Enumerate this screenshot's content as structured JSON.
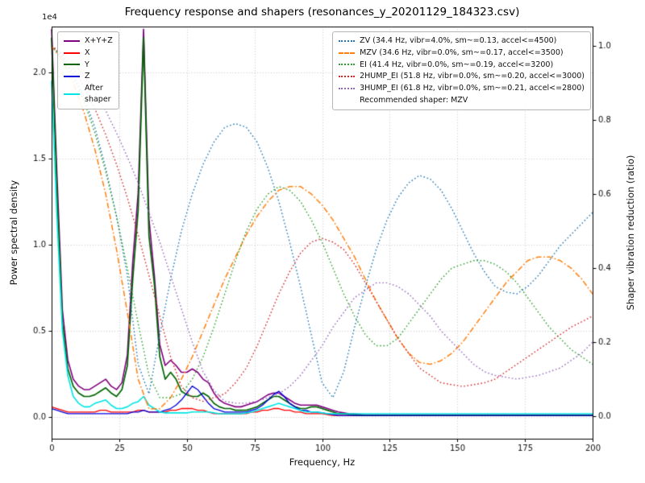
{
  "chart_data": {
    "type": "line",
    "title": "Frequency response and shapers (resonances_y_20201129_184323.csv)",
    "xlabel": "Frequency, Hz",
    "ylabel_left": "Power spectral density",
    "ylabel_right": "Shaper vibration reduction (ratio)",
    "offset_text": "1e4",
    "psd_units_scale": "1e4",
    "grid": true,
    "legend_left_position": "upper left",
    "legend_right_position": "upper right",
    "recommended": "Recommended shaper: MZV",
    "xlim": [
      0,
      200
    ],
    "ylim_left": [
      -0.125,
      2.265
    ],
    "ylim_right": [
      -0.061,
      1.052
    ],
    "x_ticks": [
      0,
      25,
      50,
      75,
      100,
      125,
      150,
      175,
      200
    ],
    "y_left_ticks": [
      "0.0",
      "0.5",
      "1.0",
      "1.5",
      "2.0"
    ],
    "y_right_ticks": [
      "0.0",
      "0.2",
      "0.4",
      "0.6",
      "0.8",
      "1.0"
    ],
    "x_psd": [
      0,
      2,
      4,
      6,
      8,
      10,
      12,
      14,
      16,
      18,
      20,
      22,
      24,
      26,
      28,
      30,
      32,
      34,
      36,
      38,
      40,
      42,
      44,
      46,
      48,
      50,
      52,
      54,
      56,
      58,
      60,
      62,
      64,
      66,
      68,
      70,
      72,
      74,
      76,
      78,
      80,
      82,
      84,
      86,
      88,
      90,
      92,
      94,
      96,
      98,
      100,
      102,
      104,
      106,
      108,
      110,
      112,
      114,
      116,
      118,
      120,
      122,
      124,
      126,
      128,
      130,
      132,
      134,
      136,
      138,
      140,
      142,
      144,
      146,
      148,
      150,
      152,
      154,
      156,
      158,
      160,
      162,
      164,
      166,
      168,
      170,
      172,
      174,
      176,
      178,
      180,
      182,
      184,
      186,
      188,
      190,
      192,
      194,
      196,
      198,
      200
    ],
    "psd_series": [
      {
        "name": "X+Y+Z",
        "color": "#800080",
        "style": "solid",
        "axis": "left",
        "width": 1.6,
        "values": [
          2.25,
          1.4,
          0.62,
          0.33,
          0.22,
          0.18,
          0.16,
          0.16,
          0.18,
          0.2,
          0.22,
          0.18,
          0.16,
          0.2,
          0.36,
          0.9,
          1.3,
          2.25,
          1.15,
          0.82,
          0.42,
          0.3,
          0.33,
          0.3,
          0.26,
          0.26,
          0.28,
          0.26,
          0.22,
          0.2,
          0.14,
          0.1,
          0.08,
          0.07,
          0.06,
          0.06,
          0.07,
          0.08,
          0.09,
          0.11,
          0.13,
          0.14,
          0.14,
          0.12,
          0.1,
          0.08,
          0.07,
          0.07,
          0.07,
          0.07,
          0.06,
          0.05,
          0.04,
          0.03,
          0.025,
          0.02,
          0.02,
          0.015,
          0.01,
          0.01,
          0.01,
          0.01,
          0.01,
          0.01,
          0.01,
          0.01,
          0.01,
          0.01,
          0.01,
          0.01,
          0.01,
          0.01,
          0.01,
          0.01,
          0.01,
          0.01,
          0.01,
          0.01,
          0.01,
          0.01,
          0.01,
          0.01,
          0.01,
          0.01,
          0.01,
          0.01,
          0.01,
          0.01,
          0.01,
          0.01,
          0.01,
          0.01,
          0.01,
          0.01,
          0.01,
          0.01,
          0.01,
          0.01,
          0.01,
          0.01,
          0.01
        ]
      },
      {
        "name": "X",
        "color": "#ff0000",
        "style": "solid",
        "axis": "left",
        "width": 1.3,
        "values": [
          0.06,
          0.05,
          0.04,
          0.03,
          0.03,
          0.03,
          0.03,
          0.03,
          0.03,
          0.04,
          0.04,
          0.03,
          0.03,
          0.03,
          0.03,
          0.03,
          0.04,
          0.04,
          0.03,
          0.03,
          0.03,
          0.03,
          0.04,
          0.04,
          0.05,
          0.05,
          0.05,
          0.04,
          0.04,
          0.03,
          0.02,
          0.02,
          0.02,
          0.02,
          0.02,
          0.02,
          0.02,
          0.03,
          0.03,
          0.04,
          0.04,
          0.05,
          0.05,
          0.04,
          0.04,
          0.03,
          0.03,
          0.02,
          0.02,
          0.02,
          0.02,
          0.015,
          0.01,
          0.01,
          0.01,
          0.01,
          0.01,
          0.01,
          0.01,
          0.01,
          0.01,
          0.01,
          0.01,
          0.01,
          0.01,
          0.01,
          0.01,
          0.01,
          0.01,
          0.01,
          0.01,
          0.01,
          0.01,
          0.01,
          0.01,
          0.01,
          0.01,
          0.01,
          0.01,
          0.01,
          0.01,
          0.01,
          0.01,
          0.01,
          0.01,
          0.01,
          0.01,
          0.01,
          0.01,
          0.01,
          0.01,
          0.01,
          0.01,
          0.01,
          0.01,
          0.01,
          0.01,
          0.01,
          0.01,
          0.01,
          0.01
        ]
      },
      {
        "name": "Y",
        "color": "#006400",
        "style": "solid",
        "axis": "left",
        "width": 1.7,
        "values": [
          2.2,
          1.3,
          0.55,
          0.28,
          0.18,
          0.14,
          0.12,
          0.12,
          0.13,
          0.15,
          0.17,
          0.14,
          0.12,
          0.16,
          0.3,
          0.8,
          1.2,
          2.2,
          1.05,
          0.77,
          0.35,
          0.22,
          0.26,
          0.22,
          0.15,
          0.13,
          0.12,
          0.12,
          0.14,
          0.12,
          0.08,
          0.06,
          0.05,
          0.05,
          0.04,
          0.04,
          0.04,
          0.05,
          0.06,
          0.08,
          0.1,
          0.12,
          0.12,
          0.1,
          0.08,
          0.06,
          0.05,
          0.05,
          0.06,
          0.06,
          0.05,
          0.04,
          0.03,
          0.02,
          0.02,
          0.015,
          0.012,
          0.01,
          0.01,
          0.01,
          0.01,
          0.01,
          0.01,
          0.01,
          0.01,
          0.01,
          0.01,
          0.01,
          0.01,
          0.01,
          0.01,
          0.01,
          0.01,
          0.01,
          0.01,
          0.01,
          0.01,
          0.01,
          0.01,
          0.01,
          0.01,
          0.01,
          0.01,
          0.01,
          0.01,
          0.01,
          0.01,
          0.01,
          0.01,
          0.01,
          0.01,
          0.01,
          0.01,
          0.01,
          0.01,
          0.01,
          0.01,
          0.01,
          0.01,
          0.01,
          0.01
        ]
      },
      {
        "name": "Z",
        "color": "#0000dd",
        "style": "solid",
        "axis": "left",
        "width": 1.3,
        "values": [
          0.05,
          0.04,
          0.03,
          0.02,
          0.02,
          0.02,
          0.02,
          0.02,
          0.02,
          0.02,
          0.02,
          0.02,
          0.02,
          0.02,
          0.02,
          0.03,
          0.03,
          0.04,
          0.03,
          0.03,
          0.03,
          0.04,
          0.05,
          0.07,
          0.1,
          0.14,
          0.18,
          0.16,
          0.12,
          0.08,
          0.05,
          0.04,
          0.03,
          0.03,
          0.03,
          0.03,
          0.03,
          0.04,
          0.05,
          0.07,
          0.1,
          0.13,
          0.15,
          0.12,
          0.08,
          0.06,
          0.04,
          0.04,
          0.03,
          0.03,
          0.025,
          0.02,
          0.015,
          0.01,
          0.01,
          0.01,
          0.01,
          0.01,
          0.01,
          0.01,
          0.01,
          0.01,
          0.01,
          0.01,
          0.01,
          0.01,
          0.01,
          0.01,
          0.01,
          0.01,
          0.01,
          0.01,
          0.01,
          0.01,
          0.01,
          0.01,
          0.01,
          0.01,
          0.01,
          0.01,
          0.01,
          0.01,
          0.01,
          0.01,
          0.01,
          0.01,
          0.01,
          0.01,
          0.01,
          0.01,
          0.01,
          0.01,
          0.01,
          0.01,
          0.01,
          0.01,
          0.01,
          0.01,
          0.01,
          0.01,
          0.01
        ]
      },
      {
        "name": "After\nshaper",
        "color": "#00e5e5",
        "style": "solid",
        "axis": "left",
        "width": 1.6,
        "values": [
          1.95,
          1.15,
          0.5,
          0.24,
          0.12,
          0.08,
          0.06,
          0.06,
          0.08,
          0.09,
          0.1,
          0.07,
          0.05,
          0.05,
          0.06,
          0.08,
          0.09,
          0.12,
          0.07,
          0.05,
          0.03,
          0.025,
          0.025,
          0.025,
          0.025,
          0.025,
          0.03,
          0.03,
          0.03,
          0.03,
          0.025,
          0.02,
          0.02,
          0.02,
          0.02,
          0.02,
          0.025,
          0.03,
          0.04,
          0.05,
          0.06,
          0.07,
          0.08,
          0.07,
          0.06,
          0.05,
          0.04,
          0.03,
          0.03,
          0.03,
          0.025,
          0.02,
          0.02,
          0.02,
          0.02,
          0.02,
          0.02,
          0.02,
          0.02,
          0.02,
          0.02,
          0.02,
          0.02,
          0.02,
          0.02,
          0.02,
          0.02,
          0.02,
          0.02,
          0.02,
          0.02,
          0.02,
          0.02,
          0.02,
          0.02,
          0.02,
          0.02,
          0.02,
          0.02,
          0.02,
          0.02,
          0.02,
          0.02,
          0.02,
          0.02,
          0.02,
          0.02,
          0.02,
          0.02,
          0.02,
          0.02,
          0.02,
          0.02,
          0.02,
          0.02,
          0.02,
          0.02,
          0.02,
          0.02,
          0.02,
          0.02
        ]
      }
    ],
    "x_shapers": [
      0,
      4,
      8,
      12,
      16,
      20,
      24,
      28,
      32,
      36,
      40,
      44,
      48,
      52,
      56,
      60,
      64,
      68,
      72,
      76,
      80,
      84,
      88,
      92,
      96,
      100,
      104,
      108,
      112,
      116,
      120,
      124,
      128,
      132,
      136,
      140,
      144,
      148,
      152,
      156,
      160,
      164,
      168,
      172,
      176,
      180,
      184,
      188,
      192,
      196,
      200
    ],
    "shaper_series": [
      {
        "name": "ZV",
        "label": "ZV (34.4 Hz, vibr=4.0%, sm~=0.13, accel<=4500)",
        "color": "#1f77b4",
        "style": "dotted",
        "axis": "right",
        "width": 1.4,
        "values": [
          1.0,
          0.97,
          0.925,
          0.86,
          0.78,
          0.67,
          0.54,
          0.38,
          0.14,
          0.06,
          0.22,
          0.37,
          0.5,
          0.6,
          0.68,
          0.74,
          0.78,
          0.79,
          0.78,
          0.74,
          0.67,
          0.58,
          0.47,
          0.35,
          0.22,
          0.09,
          0.05,
          0.12,
          0.24,
          0.35,
          0.45,
          0.53,
          0.59,
          0.63,
          0.65,
          0.64,
          0.61,
          0.56,
          0.5,
          0.44,
          0.39,
          0.35,
          0.335,
          0.33,
          0.35,
          0.38,
          0.42,
          0.46,
          0.49,
          0.52,
          0.55
        ]
      },
      {
        "name": "MZV",
        "label": "MZV (34.6 Hz, vibr=0.0%, sm~=0.17, accel<=3500)",
        "color": "#ff7f0e",
        "style": "dashdot",
        "axis": "right",
        "width": 1.5,
        "values": [
          1.0,
          0.96,
          0.9,
          0.82,
          0.72,
          0.6,
          0.45,
          0.28,
          0.1,
          0.02,
          0.02,
          0.05,
          0.1,
          0.16,
          0.23,
          0.3,
          0.37,
          0.43,
          0.49,
          0.54,
          0.58,
          0.61,
          0.62,
          0.62,
          0.6,
          0.57,
          0.53,
          0.48,
          0.43,
          0.37,
          0.31,
          0.26,
          0.21,
          0.17,
          0.145,
          0.14,
          0.15,
          0.17,
          0.2,
          0.24,
          0.28,
          0.32,
          0.36,
          0.39,
          0.42,
          0.43,
          0.43,
          0.42,
          0.4,
          0.37,
          0.33
        ]
      },
      {
        "name": "EI",
        "label": "EI (41.4 Hz, vibr=0.0%, sm~=0.19, accel<=3200)",
        "color": "#2ca02c",
        "style": "dotted",
        "axis": "right",
        "width": 1.4,
        "values": [
          1.0,
          0.965,
          0.915,
          0.85,
          0.765,
          0.66,
          0.54,
          0.4,
          0.25,
          0.11,
          0.05,
          0.05,
          0.06,
          0.1,
          0.16,
          0.24,
          0.33,
          0.42,
          0.5,
          0.56,
          0.6,
          0.62,
          0.61,
          0.58,
          0.53,
          0.47,
          0.4,
          0.33,
          0.27,
          0.22,
          0.19,
          0.19,
          0.21,
          0.25,
          0.29,
          0.33,
          0.37,
          0.4,
          0.41,
          0.42,
          0.42,
          0.41,
          0.39,
          0.36,
          0.32,
          0.28,
          0.24,
          0.21,
          0.18,
          0.16,
          0.14
        ]
      },
      {
        "name": "2HUMP_EI",
        "label": "2HUMP_EI (51.8 Hz, vibr=0.0%, sm~=0.20, accel<=3000)",
        "color": "#d62728",
        "style": "dotted",
        "axis": "right",
        "width": 1.4,
        "values": [
          1.0,
          0.975,
          0.94,
          0.89,
          0.83,
          0.76,
          0.68,
          0.59,
          0.49,
          0.38,
          0.27,
          0.16,
          0.08,
          0.05,
          0.04,
          0.05,
          0.06,
          0.09,
          0.13,
          0.19,
          0.26,
          0.33,
          0.39,
          0.44,
          0.47,
          0.48,
          0.47,
          0.45,
          0.41,
          0.36,
          0.31,
          0.26,
          0.21,
          0.17,
          0.13,
          0.11,
          0.09,
          0.085,
          0.08,
          0.085,
          0.09,
          0.1,
          0.12,
          0.14,
          0.16,
          0.18,
          0.2,
          0.22,
          0.24,
          0.255,
          0.27
        ]
      },
      {
        "name": "3HUMP_EI",
        "label": "3HUMP_EI (61.8 Hz, vibr=0.0%, sm~=0.21, accel<=2800)",
        "color": "#9467bd",
        "style": "dotted",
        "axis": "right",
        "width": 1.4,
        "values": [
          1.0,
          0.98,
          0.955,
          0.92,
          0.875,
          0.825,
          0.765,
          0.7,
          0.63,
          0.55,
          0.47,
          0.38,
          0.29,
          0.2,
          0.12,
          0.07,
          0.04,
          0.035,
          0.035,
          0.04,
          0.05,
          0.06,
          0.08,
          0.11,
          0.15,
          0.19,
          0.24,
          0.28,
          0.32,
          0.34,
          0.36,
          0.36,
          0.35,
          0.33,
          0.3,
          0.27,
          0.23,
          0.2,
          0.17,
          0.14,
          0.12,
          0.11,
          0.105,
          0.1,
          0.105,
          0.11,
          0.12,
          0.13,
          0.15,
          0.17,
          0.2
        ]
      }
    ]
  }
}
